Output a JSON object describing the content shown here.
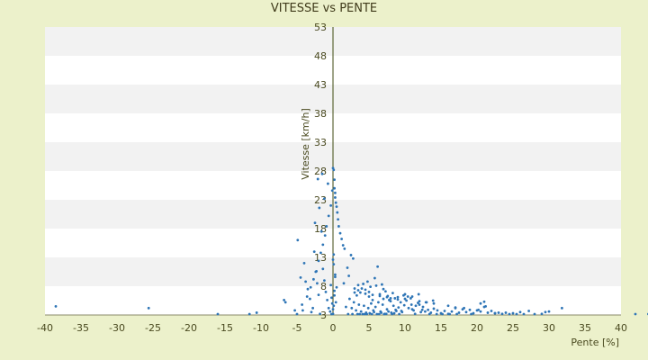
{
  "chart_data": {
    "type": "scatter",
    "title": "VITESSE vs PENTE",
    "xlabel": "Pente [%]",
    "ylabel": "Vitesse [km/h]",
    "xlim": [
      -40,
      40
    ],
    "ylim": [
      3,
      53
    ],
    "xticks": [
      -40,
      -35,
      -30,
      -25,
      -20,
      -15,
      -10,
      -5,
      0,
      5,
      10,
      15,
      20,
      25,
      30,
      35,
      40
    ],
    "yticks": [
      3,
      8,
      13,
      18,
      23,
      28,
      33,
      38,
      43,
      48,
      53
    ],
    "grid": "horizontal-bands",
    "legend": "none",
    "colors": {
      "background": "#ecf1cb",
      "plot_band_light": "#ffffff",
      "plot_band_dark": "#f2f2f2",
      "point": "#2e75b6",
      "y_axis": "#3f4a10"
    },
    "series": [
      {
        "x": [
          -38.5,
          -25.6,
          -16,
          -11.6,
          -10.6,
          -6.8,
          -6.6,
          -5.3,
          -5,
          -4.9,
          -4.5,
          -4.2,
          -4,
          -3.5,
          -3.2,
          -3,
          -2.8,
          -2.6,
          -2.4,
          -2.2,
          -2,
          -1.8,
          -1.6,
          -1.4,
          -1.2,
          -1,
          -0.8,
          -0.6,
          -0.4,
          -0.2,
          -4.3,
          -3.6,
          -3.1,
          -2.7,
          -2.3,
          -2.0,
          -1.7,
          -1.4,
          -1.1,
          -0.9,
          -0.6,
          -0.3,
          -0.1,
          -2.5,
          -1.9,
          -1.2,
          -0.7,
          -3.8,
          -2.1,
          -1.5,
          0,
          0.1,
          0.2,
          0.2,
          0.3,
          0.3,
          0.4,
          0.5,
          0.6,
          0.7,
          0.8,
          1,
          1.2,
          1.4,
          1.6,
          0.1,
          0.3,
          0.5,
          0.2,
          0.4,
          0,
          0,
          -0.1,
          0.1,
          -0.2,
          0.2,
          -0.3,
          0.3,
          0,
          0.1,
          1.5,
          2,
          2.2,
          2.5,
          2.8,
          3,
          3.3,
          3.5,
          3.8,
          4,
          4.2,
          4.5,
          4.8,
          5,
          5.2,
          5.5,
          5.8,
          6,
          6.2,
          6.5,
          6.8,
          7,
          7.3,
          7.6,
          8,
          8.3,
          8.6,
          9,
          9.4,
          9.8,
          1.8,
          2.3,
          2.6,
          2.9,
          3.2,
          3.6,
          3.9,
          4.3,
          4.6,
          4.9,
          5.3,
          5.6,
          5.9,
          6.3,
          6.6,
          6.9,
          7.2,
          7.5,
          7.8,
          8.1,
          8.4,
          8.7,
          9.1,
          9.5,
          9.9,
          2.1,
          2.7,
          3.4,
          3.7,
          4.1,
          4.4,
          4.7,
          5.1,
          5.4,
          5.7,
          6.1,
          6.4,
          6.7,
          7.1,
          7.4,
          7.7,
          8.2,
          8.5,
          8.8,
          9.2,
          9.6,
          3,
          3.5,
          4.5,
          5,
          5.5,
          6.5,
          7,
          7.5,
          8,
          9,
          10,
          11,
          12,
          10.2,
          10.5,
          10.8,
          11.2,
          11.5,
          11.8,
          12.2,
          12.5,
          12.8,
          13.2,
          13.6,
          14,
          14.5,
          15,
          15.5,
          16,
          16.5,
          17,
          17.5,
          18,
          18.5,
          19,
          19.5,
          20,
          20.5,
          21,
          21.5,
          22,
          22.5,
          23,
          10.4,
          10.9,
          11.4,
          11.9,
          12.4,
          12.9,
          13.4,
          13.9,
          14.4,
          15.2,
          16.2,
          17.2,
          18.2,
          19.2,
          20.2,
          21.2,
          23.5,
          24,
          24.5,
          25,
          25.5,
          26,
          26.5,
          27.2,
          28,
          29,
          29.5,
          30,
          31.8,
          42,
          43.8,
          10,
          11,
          12,
          13,
          14,
          16,
          17,
          20.5,
          21,
          22.5
        ],
        "y": [
          4.5,
          4.2,
          2.8,
          2.2,
          3.4,
          5.6,
          5.2,
          3.8,
          2.6,
          16,
          9.5,
          3.8,
          12,
          7.5,
          5.8,
          3.5,
          4.2,
          14,
          10.5,
          8.5,
          6.5,
          3.2,
          17.5,
          11,
          9,
          7,
          5.6,
          4.2,
          3.6,
          2.4,
          4.8,
          6.2,
          7.8,
          9.2,
          10.6,
          12.4,
          13.8,
          15.2,
          16.8,
          18.4,
          20.2,
          22,
          24.6,
          19,
          21.6,
          23.2,
          25.8,
          8.8,
          26.6,
          27.5,
          28.5,
          28.2,
          26.5,
          25,
          24.2,
          23.4,
          22.5,
          21.8,
          20.8,
          19.6,
          18.4,
          17.2,
          16.2,
          15.1,
          14.5,
          11.8,
          9.6,
          7.8,
          6.4,
          5.2,
          3.2,
          4.0,
          5.0,
          4.6,
          6.0,
          7.2,
          8.2,
          10,
          12.6,
          13.5,
          8.5,
          11.2,
          9.8,
          13.4,
          12.8,
          7.6,
          6.4,
          8.2,
          6.9,
          7.6,
          8.4,
          7.4,
          8.8,
          6.2,
          7.9,
          5.6,
          9.4,
          8.1,
          11.4,
          6.6,
          8.3,
          5.8,
          7.1,
          6.3,
          5.4,
          6.8,
          5.9,
          6.1,
          5.2,
          6.4,
          4.4,
          5.8,
          4.2,
          5.2,
          3.8,
          4.8,
          3.6,
          4.6,
          3.4,
          4.2,
          5.0,
          3.8,
          4.4,
          5.2,
          3.6,
          4.8,
          3.2,
          4.0,
          5.6,
          3.4,
          4.6,
          3.9,
          4.3,
          3.7,
          4.7,
          3.0,
          2.6,
          2.4,
          2.8,
          2.5,
          3.1,
          2.7,
          3.3,
          2.9,
          3.5,
          2.6,
          3.0,
          3.4,
          2.8,
          3.2,
          3.6,
          2.9,
          3.3,
          3.7,
          3.1,
          3.5,
          6.9,
          7.3,
          6.7,
          7.0,
          6.5,
          6.3,
          7.5,
          6.1,
          5.9,
          5.7,
          6.6,
          6.2,
          5.4,
          5.5,
          4.2,
          5.9,
          3.8,
          4.6,
          5.1,
          3.5,
          4.4,
          3.6,
          3.9,
          3.4,
          4.1,
          3.8,
          3.3,
          3.7,
          3.2,
          3.6,
          4.3,
          3.4,
          4.0,
          3.5,
          3.9,
          3.3,
          3.8,
          3.6,
          5.3,
          3.4,
          3.7,
          3.3,
          3.4,
          6.2,
          4.8,
          3.2,
          6.6,
          3.9,
          5.2,
          3.0,
          5.5,
          3.1,
          2.8,
          3.0,
          2.9,
          4.2,
          3.1,
          3.9,
          4.5,
          3.2,
          3.4,
          3.1,
          3.3,
          3.0,
          3.5,
          2.9,
          3.7,
          2.4,
          3.2,
          3.5,
          3.6,
          4.2,
          2.9,
          2.8,
          5.8,
          4.0,
          4.8,
          5.2,
          5.0,
          4.6,
          4.2,
          5.0,
          4.4,
          3.3
        ]
      }
    ]
  }
}
